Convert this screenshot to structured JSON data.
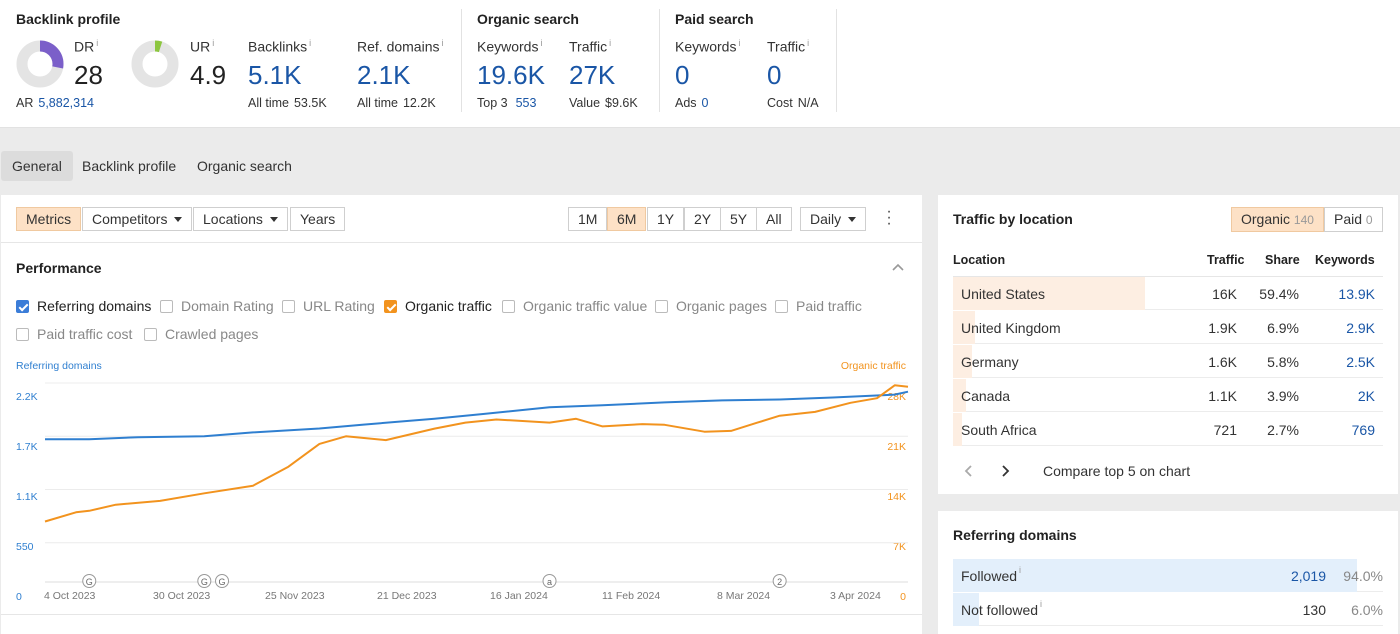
{
  "top": {
    "backlink_profile": {
      "title": "Backlink profile",
      "dr": {
        "label": "DR",
        "value": "28",
        "fill": 0.28
      },
      "ur": {
        "label": "UR",
        "value": "4.9",
        "fill": 0.05
      },
      "ar": {
        "label": "AR",
        "value": "5,882,314"
      },
      "backlinks": {
        "label": "Backlinks",
        "value": "5.1K",
        "sub_label": "All time",
        "sub_value": "53.5K"
      },
      "ref_domains": {
        "label": "Ref. domains",
        "value": "2.1K",
        "sub_label": "All time",
        "sub_value": "12.2K"
      }
    },
    "organic_search": {
      "title": "Organic search",
      "keywords": {
        "label": "Keywords",
        "value": "19.6K",
        "sub_label": "Top 3",
        "sub_value": "553"
      },
      "traffic": {
        "label": "Traffic",
        "value": "27K",
        "sub_label": "Value",
        "sub_value": "$9.6K"
      }
    },
    "paid_search": {
      "title": "Paid search",
      "keywords": {
        "label": "Keywords",
        "value": "0",
        "sub_label": "Ads",
        "sub_value": "0"
      },
      "traffic": {
        "label": "Traffic",
        "value": "0",
        "sub_label": "Cost",
        "sub_value": "N/A"
      }
    },
    "info_mark": "i"
  },
  "tabs": [
    "General",
    "Backlink profile",
    "Organic search"
  ],
  "toolbar": {
    "metrics": "Metrics",
    "competitors": "Competitors",
    "locations": "Locations",
    "years": "Years",
    "ranges": [
      "1M",
      "6M",
      "1Y",
      "2Y",
      "5Y",
      "All"
    ],
    "interval": "Daily"
  },
  "performance": {
    "title": "Performance",
    "checkboxes": [
      {
        "label": "Referring domains",
        "checked": true
      },
      {
        "label": "Domain Rating",
        "checked": false
      },
      {
        "label": "URL Rating",
        "checked": false
      },
      {
        "label": "Organic traffic",
        "checked": true
      },
      {
        "label": "Organic traffic value",
        "checked": false
      },
      {
        "label": "Organic pages",
        "checked": false
      },
      {
        "label": "Paid traffic",
        "checked": false
      },
      {
        "label": "Paid traffic cost",
        "checked": false
      },
      {
        "label": "Crawled pages",
        "checked": false
      }
    ]
  },
  "chart_data": {
    "type": "line",
    "left_axis_label": "Referring domains",
    "right_axis_label": "Organic traffic",
    "left_ticks": [
      "2.2K",
      "1.7K",
      "1.1K",
      "550",
      "0"
    ],
    "right_ticks": [
      "28K",
      "21K",
      "14K",
      "7K",
      "0"
    ],
    "ylim_left": [
      0,
      2200
    ],
    "ylim_right": [
      0,
      28000
    ],
    "x_ticks": [
      "4 Oct 2023",
      "30 Oct 2023",
      "25 Nov 2023",
      "21 Dec 2023",
      "16 Jan 2024",
      "11 Feb 2024",
      "8 Mar 2024",
      "3 Apr 2024"
    ],
    "grid": true,
    "series": [
      {
        "name": "Referring domains",
        "axis": "left",
        "color": "#2f7fd0",
        "x": [
          "2023-09-24",
          "2023-10-04",
          "2023-10-15",
          "2023-10-30",
          "2023-11-10",
          "2023-11-25",
          "2023-12-05",
          "2023-12-21",
          "2024-01-01",
          "2024-01-16",
          "2024-01-28",
          "2024-02-11",
          "2024-02-24",
          "2024-03-08",
          "2024-03-20",
          "2024-04-03",
          "2024-04-06"
        ],
        "values": [
          1620,
          1620,
          1640,
          1650,
          1690,
          1730,
          1770,
          1830,
          1880,
          1950,
          1970,
          2000,
          2020,
          2030,
          2050,
          2080,
          2110
        ]
      },
      {
        "name": "Organic traffic",
        "axis": "right",
        "color": "#f2931e",
        "x": [
          "2023-09-24",
          "2023-10-01",
          "2023-10-04",
          "2023-10-10",
          "2023-10-20",
          "2023-10-30",
          "2023-11-10",
          "2023-11-18",
          "2023-11-25",
          "2023-12-01",
          "2023-12-10",
          "2023-12-21",
          "2023-12-28",
          "2024-01-04",
          "2024-01-16",
          "2024-01-22",
          "2024-01-28",
          "2024-02-06",
          "2024-02-11",
          "2024-02-20",
          "2024-02-26",
          "2024-03-03",
          "2024-03-08",
          "2024-03-16",
          "2024-03-24",
          "2024-03-30",
          "2024-04-03",
          "2024-04-06"
        ],
        "values": [
          9800,
          11000,
          11200,
          12000,
          12500,
          13500,
          14500,
          17000,
          20000,
          21000,
          20500,
          22000,
          22800,
          23200,
          22800,
          23300,
          22300,
          22600,
          22500,
          21600,
          21700,
          22800,
          23700,
          24200,
          25400,
          26000,
          27700,
          27500
        ]
      }
    ],
    "annotations": [
      {
        "label": "G",
        "x": "2023-10-04"
      },
      {
        "label": "G",
        "x": "2023-10-30"
      },
      {
        "label": "G",
        "x": "2023-11-03"
      },
      {
        "label": "a",
        "x": "2024-01-16"
      },
      {
        "label": "2",
        "x": "2024-03-08"
      }
    ]
  },
  "traffic_by_location": {
    "title": "Traffic by location",
    "organic_label": "Organic",
    "organic_count": "140",
    "paid_label": "Paid",
    "paid_count": "0",
    "headers": [
      "Location",
      "Traffic",
      "Share",
      "Keywords"
    ],
    "rows": [
      {
        "location": "United States",
        "traffic": "16K",
        "share": "59.4%",
        "keywords": "13.9K",
        "share_value": 59.4
      },
      {
        "location": "United Kingdom",
        "traffic": "1.9K",
        "share": "6.9%",
        "keywords": "2.9K",
        "share_value": 6.9
      },
      {
        "location": "Germany",
        "traffic": "1.6K",
        "share": "5.8%",
        "keywords": "2.5K",
        "share_value": 5.8
      },
      {
        "location": "Canada",
        "traffic": "1.1K",
        "share": "3.9%",
        "keywords": "2K",
        "share_value": 3.9
      },
      {
        "location": "South Africa",
        "traffic": "721",
        "share": "2.7%",
        "keywords": "769",
        "share_value": 2.7
      }
    ],
    "compare_label": "Compare top 5 on chart"
  },
  "referring_domains": {
    "title": "Referring domains",
    "rows": [
      {
        "label": "Followed",
        "value": "2,019",
        "pct": "94.0%",
        "pct_value": 94.0
      },
      {
        "label": "Not followed",
        "value": "130",
        "pct": "6.0%",
        "pct_value": 6.0
      }
    ]
  },
  "colors": {
    "blue_link": "#1a56a6",
    "accent_orange": "#f2931e",
    "chart_blue": "#2f7fd0",
    "dr_purple": "#7b5fc9",
    "ur_green": "#8cc63f"
  }
}
